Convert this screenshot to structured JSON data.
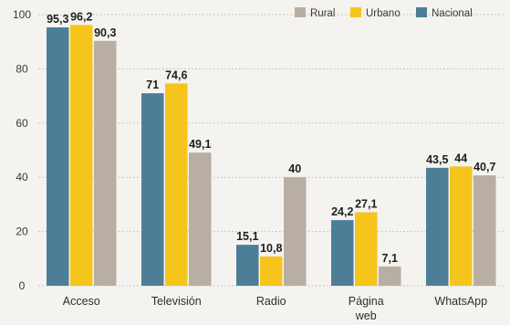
{
  "chart_data": {
    "type": "bar",
    "categories": [
      [
        "Acceso"
      ],
      [
        "Televisión"
      ],
      [
        "Radio"
      ],
      [
        "Página",
        "web"
      ],
      [
        "WhatsApp"
      ]
    ],
    "series": [
      {
        "name": "Nacional",
        "color": "#4d7e98",
        "values": [
          95.3,
          71,
          15.1,
          24.2,
          43.5
        ]
      },
      {
        "name": "Urbano",
        "color": "#f6c51b",
        "values": [
          96.2,
          74.6,
          10.8,
          27.1,
          44
        ]
      },
      {
        "name": "Rural",
        "color": "#b8aea4",
        "values": [
          90.3,
          49.1,
          40,
          7.1,
          40.7
        ]
      }
    ],
    "value_labels": [
      [
        "95,3",
        "71",
        "15,1",
        "24,2",
        "43,5"
      ],
      [
        "96,2",
        "74,6",
        "10,8",
        "27,1",
        "44"
      ],
      [
        "90,3",
        "49,1",
        "40",
        "7,1",
        "40,7"
      ]
    ],
    "legend_order": [
      2,
      1,
      0
    ],
    "legend_position": "top-right",
    "yticks": [
      0,
      20,
      40,
      60,
      80,
      100
    ],
    "ylim": [
      0,
      100
    ],
    "grid": "horizontal dotted",
    "title": "",
    "xlabel": "",
    "ylabel": ""
  }
}
